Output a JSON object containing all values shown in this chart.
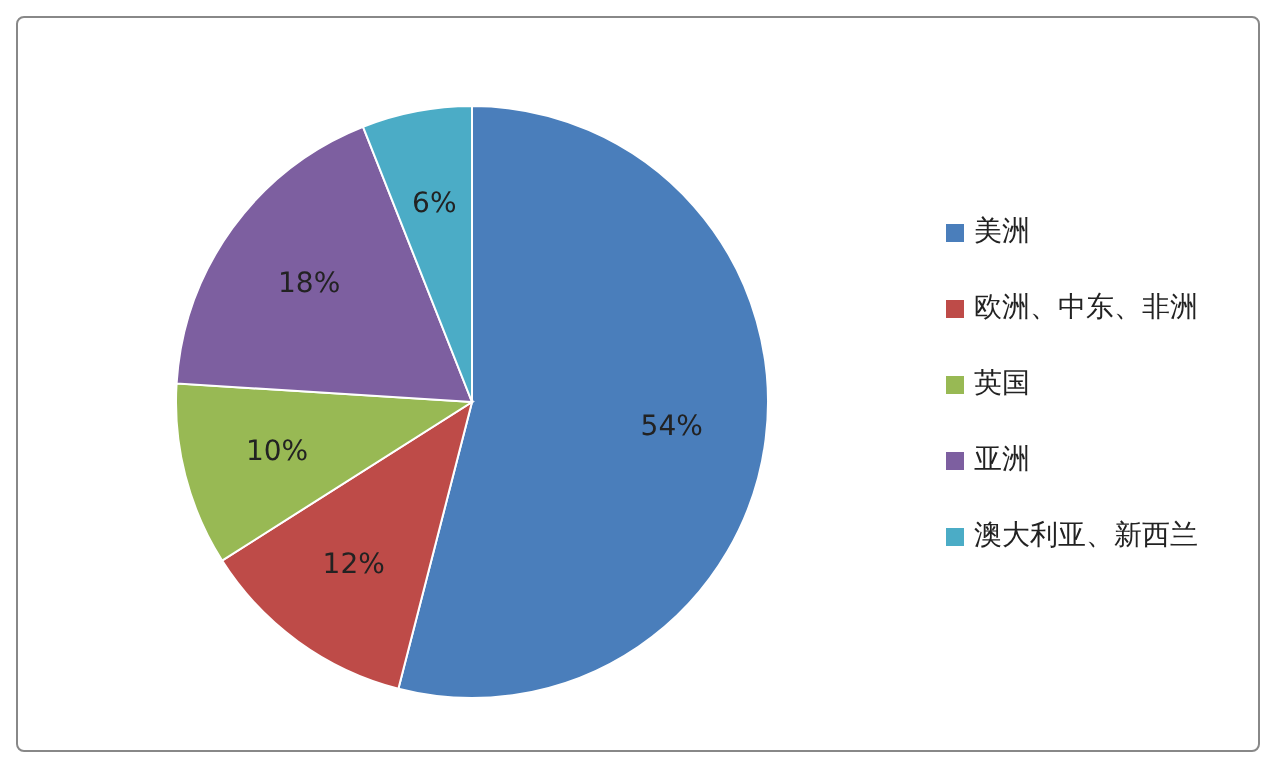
{
  "chart_data": {
    "type": "pie",
    "categories": [
      "美洲",
      "欧洲、中东、非洲",
      "英国",
      "亚洲",
      "澳大利亚、新西兰"
    ],
    "values": [
      54,
      12,
      10,
      18,
      6
    ],
    "colors": [
      "#4a7ebb",
      "#be4b48",
      "#98b954",
      "#7d5fa0",
      "#4bacc6"
    ],
    "value_labels": [
      "54%",
      "12%",
      "10%",
      "18%",
      "6%"
    ],
    "legend": "right"
  }
}
